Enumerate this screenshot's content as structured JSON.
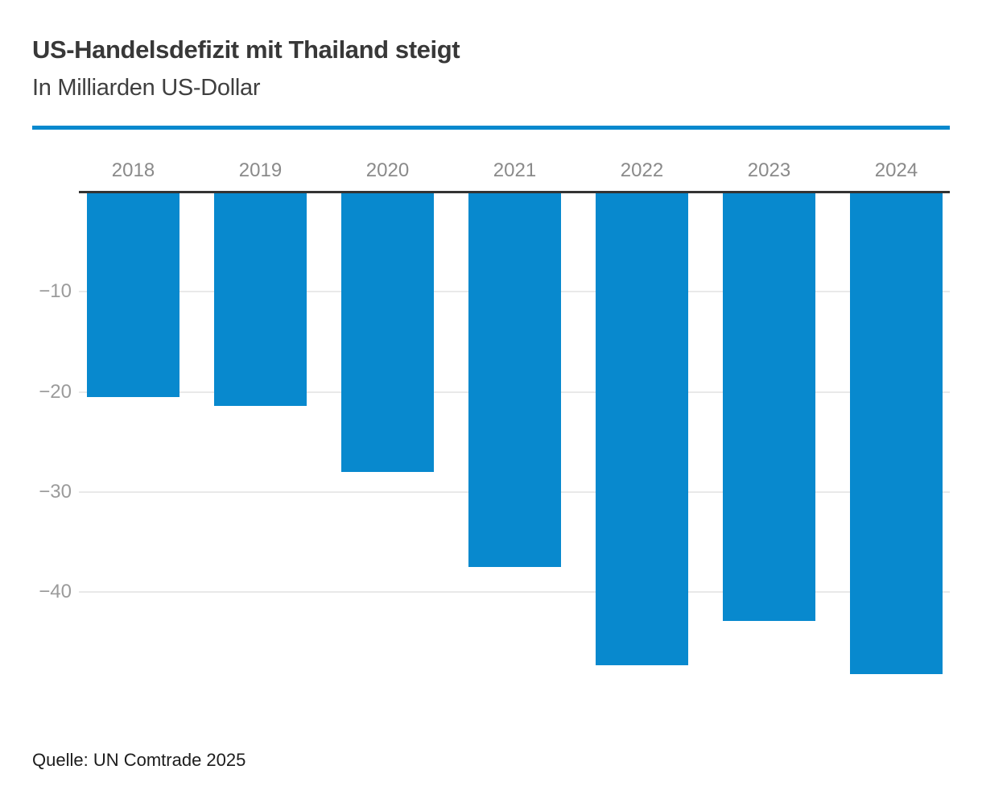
{
  "header": {
    "title": "US-Handelsdefizit mit Thailand steigt",
    "subtitle": "In Milliarden US-Dollar"
  },
  "footer": {
    "source": "Quelle: UN Comtrade 2025"
  },
  "colors": {
    "accent_blue": "#0889ce",
    "bar_blue": "#0889ce",
    "axis_line": "#333333",
    "gridline": "#e9e9e9",
    "year_label": "#8a8a8a",
    "ytick_label": "#9b9b9b",
    "title_text": "#383838",
    "source_text": "#1c1c1c"
  },
  "chart_data": {
    "type": "bar",
    "title": "US-Handelsdefizit mit Thailand steigt",
    "subtitle": "In Milliarden US-Dollar",
    "unit": "Milliarden US-Dollar",
    "orientation": "vertical",
    "value_axis_side": "left",
    "zero_baseline_position": "top",
    "grid": true,
    "legend": "none",
    "categories": [
      "2018",
      "2019",
      "2020",
      "2021",
      "2022",
      "2023",
      "2024"
    ],
    "values": [
      -20.6,
      -21.5,
      -28.1,
      -37.6,
      -47.4,
      -43.0,
      -48.3
    ],
    "bar_color": "#0889ce",
    "ylim": [
      -50,
      0
    ],
    "yticks": [
      -10,
      -20,
      -30,
      -40
    ],
    "ytick_labels": [
      "−10",
      "−20",
      "−30",
      "−40"
    ]
  }
}
